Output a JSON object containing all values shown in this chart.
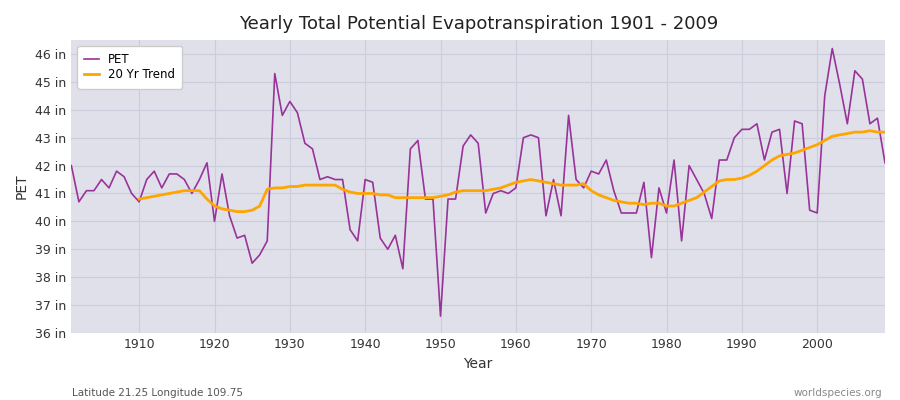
{
  "title": "Yearly Total Potential Evapotranspiration 1901 - 2009",
  "xlabel": "Year",
  "ylabel": "PET",
  "footnote_left": "Latitude 21.25 Longitude 109.75",
  "footnote_right": "worldspecies.org",
  "pet_color": "#993399",
  "trend_color": "#FFA500",
  "plot_bg_color": "#E0E0EA",
  "fig_bg_color": "#FFFFFF",
  "grid_color": "#CCCCDD",
  "ylim_min": 36,
  "ylim_max": 46.5,
  "xlim_min": 1901,
  "xlim_max": 2009,
  "ytick_labels": [
    "36 in",
    "37 in",
    "38 in",
    "39 in",
    "40 in",
    "41 in",
    "42 in",
    "43 in",
    "44 in",
    "45 in",
    "46 in"
  ],
  "ytick_values": [
    36,
    37,
    38,
    39,
    40,
    41,
    42,
    43,
    44,
    45,
    46
  ],
  "xtick_positions": [
    1910,
    1920,
    1930,
    1940,
    1950,
    1960,
    1970,
    1980,
    1990,
    2000
  ],
  "years": [
    1901,
    1902,
    1903,
    1904,
    1905,
    1906,
    1907,
    1908,
    1909,
    1910,
    1911,
    1912,
    1913,
    1914,
    1915,
    1916,
    1917,
    1918,
    1919,
    1920,
    1921,
    1922,
    1923,
    1924,
    1925,
    1926,
    1927,
    1928,
    1929,
    1930,
    1931,
    1932,
    1933,
    1934,
    1935,
    1936,
    1937,
    1938,
    1939,
    1940,
    1941,
    1942,
    1943,
    1944,
    1945,
    1946,
    1947,
    1948,
    1949,
    1950,
    1951,
    1952,
    1953,
    1954,
    1955,
    1956,
    1957,
    1958,
    1959,
    1960,
    1961,
    1962,
    1963,
    1964,
    1965,
    1966,
    1967,
    1968,
    1969,
    1970,
    1971,
    1972,
    1973,
    1974,
    1975,
    1976,
    1977,
    1978,
    1979,
    1980,
    1981,
    1982,
    1983,
    1984,
    1985,
    1986,
    1987,
    1988,
    1989,
    1990,
    1991,
    1992,
    1993,
    1994,
    1995,
    1996,
    1997,
    1998,
    1999,
    2000,
    2001,
    2002,
    2003,
    2004,
    2005,
    2006,
    2007,
    2008,
    2009
  ],
  "pet_values": [
    42.0,
    40.7,
    41.1,
    41.1,
    41.5,
    41.2,
    41.8,
    41.6,
    41.0,
    40.7,
    41.5,
    41.8,
    41.2,
    41.7,
    41.7,
    41.5,
    41.0,
    41.5,
    42.1,
    40.0,
    41.7,
    40.2,
    39.4,
    39.5,
    38.5,
    38.8,
    39.3,
    45.3,
    43.8,
    44.3,
    43.9,
    42.8,
    42.6,
    41.5,
    41.6,
    41.5,
    41.5,
    39.7,
    39.3,
    41.5,
    41.4,
    39.4,
    39.0,
    39.5,
    38.3,
    42.6,
    42.9,
    40.8,
    40.8,
    36.6,
    40.8,
    40.8,
    42.7,
    43.1,
    42.8,
    40.3,
    41.0,
    41.1,
    41.0,
    41.2,
    43.0,
    43.1,
    43.0,
    40.2,
    41.5,
    40.2,
    43.8,
    41.5,
    41.2,
    41.8,
    41.7,
    42.2,
    41.1,
    40.3,
    40.3,
    40.3,
    41.4,
    38.7,
    41.2,
    40.3,
    42.2,
    39.3,
    42.0,
    41.5,
    41.0,
    40.1,
    42.2,
    42.2,
    43.0,
    43.3,
    43.3,
    43.5,
    42.2,
    43.2,
    43.3,
    41.0,
    43.6,
    43.5,
    40.4,
    40.3,
    44.5,
    46.2,
    44.9,
    43.5,
    45.4,
    45.1,
    43.5,
    43.7,
    42.1
  ],
  "trend_start_year": 1910,
  "trend_values": [
    40.8,
    40.85,
    40.9,
    40.95,
    41.0,
    41.05,
    41.1,
    41.1,
    41.1,
    40.8,
    40.55,
    40.45,
    40.4,
    40.35,
    40.35,
    40.4,
    40.55,
    41.15,
    41.2,
    41.2,
    41.25,
    41.25,
    41.3,
    41.3,
    41.3,
    41.3,
    41.3,
    41.15,
    41.05,
    41.0,
    41.0,
    41.0,
    40.95,
    40.95,
    40.85,
    40.85,
    40.85,
    40.85,
    40.85,
    40.85,
    40.9,
    40.95,
    41.05,
    41.1,
    41.1,
    41.1,
    41.1,
    41.15,
    41.2,
    41.3,
    41.4,
    41.45,
    41.5,
    41.45,
    41.4,
    41.35,
    41.3,
    41.3,
    41.3,
    41.35,
    41.1,
    40.95,
    40.85,
    40.75,
    40.7,
    40.65,
    40.65,
    40.6,
    40.65,
    40.65,
    40.55,
    40.55,
    40.65,
    40.75,
    40.85,
    41.05,
    41.25,
    41.45,
    41.5,
    41.5,
    41.55,
    41.65,
    41.8,
    42.0,
    42.2,
    42.35,
    42.4,
    42.45,
    42.55,
    42.65,
    42.75,
    42.9,
    43.05,
    43.1,
    43.15,
    43.2,
    43.2,
    43.25,
    43.2,
    43.2
  ]
}
